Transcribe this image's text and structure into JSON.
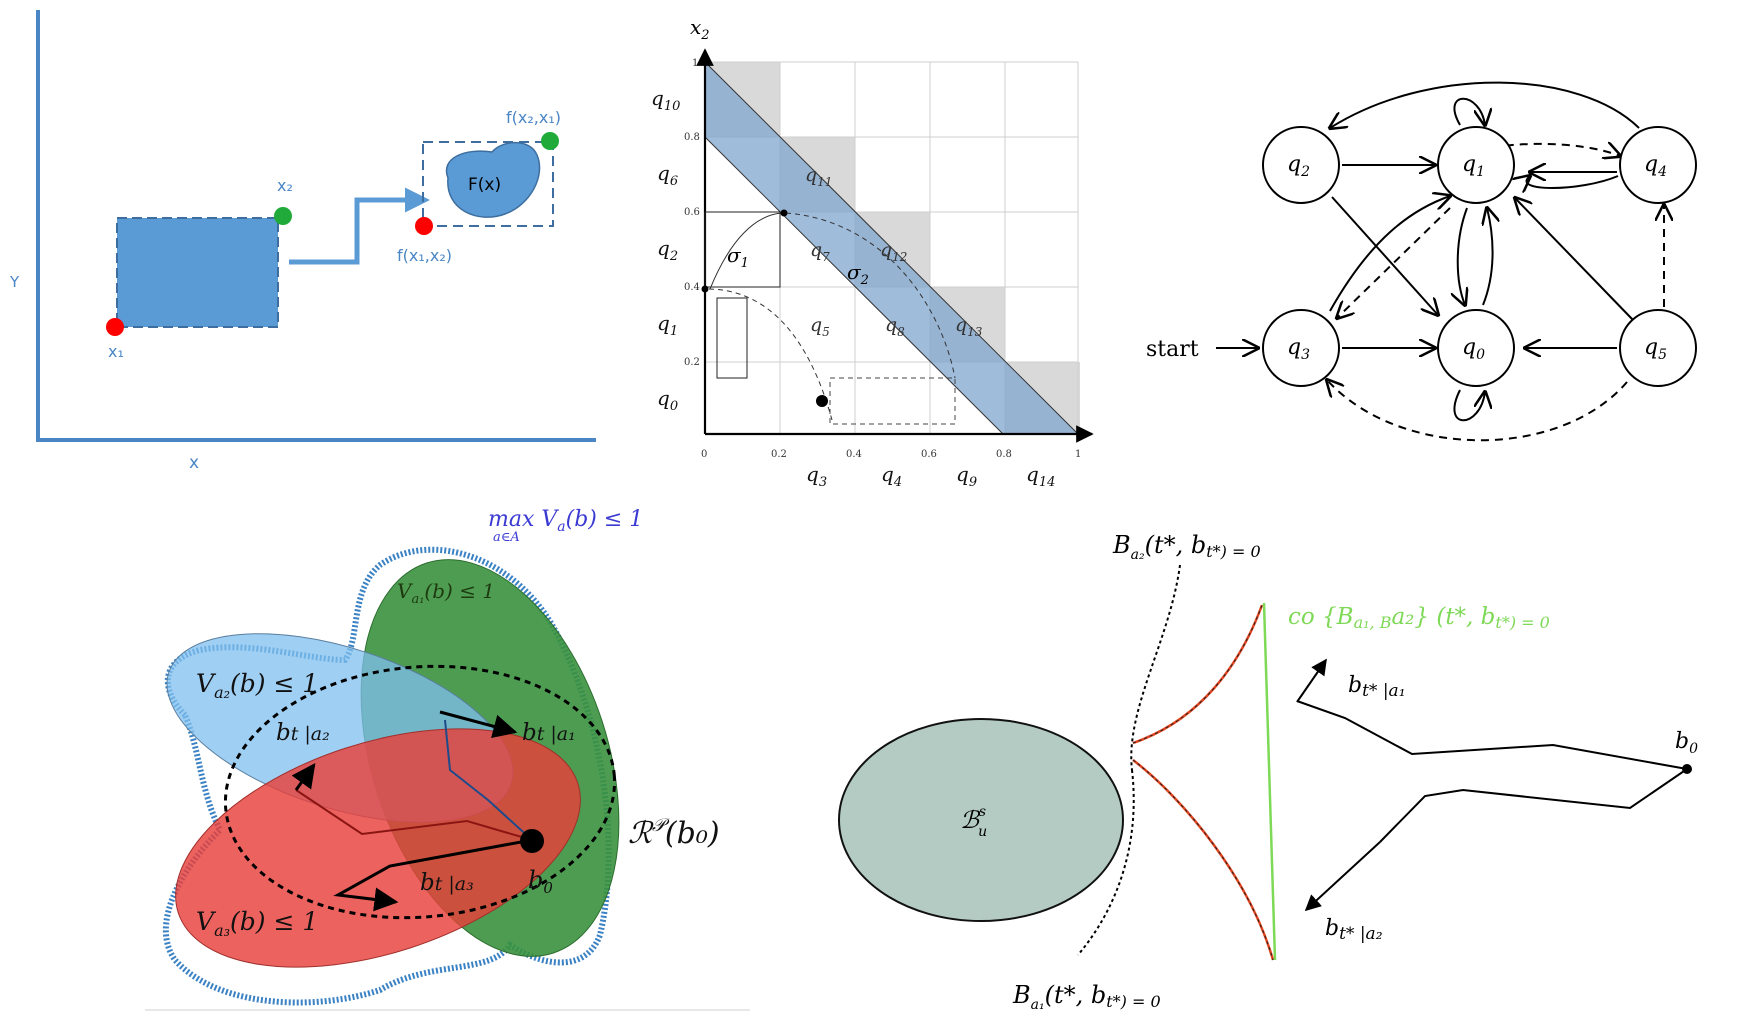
{
  "panel1": {
    "y_axis_label": "Y",
    "x_axis_label": "x",
    "x1_label": "x₁",
    "x2_label": "x₂",
    "fx_label": "F(x)",
    "f_x1x2_label": "f(x₁,x₂)",
    "f_x2x1_label": "f(x₂,x₁)",
    "colors": {
      "box": "#5b9bd5",
      "axis": "#4a86c5",
      "red_point": "#ff0000",
      "green_point": "#1faa3a"
    }
  },
  "panel2": {
    "y_axis_label": "x",
    "y_axis_sub": "2",
    "x_ticks": [
      "0",
      "0.2",
      "0.4",
      "0.6",
      "0.8",
      "1"
    ],
    "y_ticks": [
      "0.2",
      "0.4",
      "0.6",
      "0.8",
      "1"
    ],
    "row_labels": [
      {
        "base": "q",
        "sub": "10"
      },
      {
        "base": "q",
        "sub": "6"
      },
      {
        "base": "q",
        "sub": "2"
      },
      {
        "base": "q",
        "sub": "1"
      },
      {
        "base": "q",
        "sub": "0"
      }
    ],
    "col_labels": [
      {
        "base": "q",
        "sub": "3"
      },
      {
        "base": "q",
        "sub": "4"
      },
      {
        "base": "q",
        "sub": "9"
      },
      {
        "base": "q",
        "sub": "14"
      }
    ],
    "cell_labels": [
      {
        "base": "q",
        "sub": "11"
      },
      {
        "base": "q",
        "sub": "7"
      },
      {
        "base": "q",
        "sub": "12"
      },
      {
        "base": "q",
        "sub": "5"
      },
      {
        "base": "q",
        "sub": "8"
      },
      {
        "base": "q",
        "sub": "13"
      }
    ],
    "sigma_labels": [
      {
        "base": "σ",
        "sub": "1"
      },
      {
        "base": "σ",
        "sub": "2"
      }
    ]
  },
  "panel3": {
    "nodes": [
      {
        "base": "q",
        "sub": "2"
      },
      {
        "base": "q",
        "sub": "1"
      },
      {
        "base": "q",
        "sub": "4"
      },
      {
        "base": "q",
        "sub": "3"
      },
      {
        "base": "q",
        "sub": "0"
      },
      {
        "base": "q",
        "sub": "5"
      }
    ],
    "start_label": "start"
  },
  "panel4": {
    "max_label": "max V",
    "max_label_sub": "a",
    "max_label_rest": "(b) ≤ 1",
    "max_under": "a∈A",
    "va1_label": "V",
    "va1_sub": "a₁",
    "va1_rest": "(b) ≤ 1",
    "va2_label": "V",
    "va2_sub": "a₂",
    "va2_rest": "(b) ≤ 1",
    "va3_label": "V",
    "va3_sub": "a₃",
    "va3_rest": "(b) ≤ 1",
    "bt_a1": "b",
    "bt_a1_rest": "t |a₁",
    "bt_a2": "b",
    "bt_a2_rest": "t |a₂",
    "bt_a3": "b",
    "bt_a3_rest": "t |a₃",
    "b0_label": "b",
    "b0_sub": "0",
    "reach_label": "ℛ",
    "reach_sup": "𝒫",
    "reach_rest": "(b₀)",
    "colors": {
      "green": "#3a913e",
      "blue": "#7fbfef",
      "red": "#e8403a",
      "border": "#3b82c4"
    }
  },
  "panel5": {
    "ba2_label": "B",
    "ba2_sub": "a₂",
    "ba2_rest": "(t*, b",
    "ba2_end": "t*) = 0",
    "ba1_label": "B",
    "ba1_sub": "a₁",
    "ba1_rest": "(t*, b",
    "ba1_end": "t*) = 0",
    "co_label": "co {B",
    "co_rest": "a₁, B",
    "co_end": "a₂} (t*, b",
    "co_final": "t*) = 0",
    "set_label": "ℬ",
    "set_sup": "s",
    "set_sub": "u",
    "bts_a1": "b",
    "bts_a1_rest": "t* |a₁",
    "bts_a2": "b",
    "bts_a2_rest": "t* |a₂",
    "b0_label": "b",
    "b0_sub": "0",
    "colors": {
      "ellipse": "#b3cbc3",
      "green_line": "#7ed957",
      "red_curve": "#e0451f"
    }
  }
}
